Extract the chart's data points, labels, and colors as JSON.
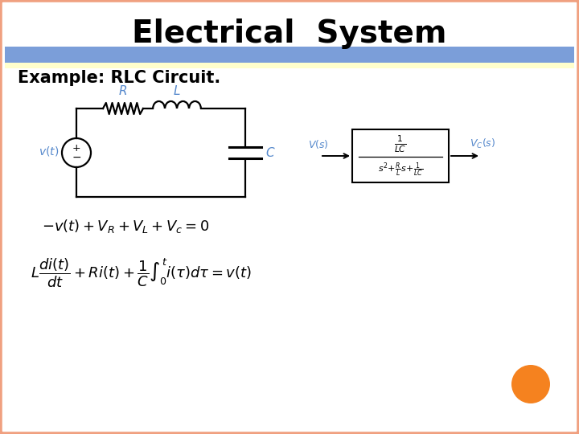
{
  "title": "Electrical  System",
  "title_fontsize": 28,
  "subtitle": "Example: RLC Circuit.",
  "subtitle_fontsize": 15,
  "bg_color": "#FFFFFF",
  "outer_border_color": "#F0A080",
  "header_bar_color": "#7B9ED9",
  "cream_bar_color": "#FFFFF0",
  "circuit_color": "#000000",
  "label_color": "#5588CC",
  "orange_dot_color": "#F5821F",
  "arrow_color": "#000000",
  "tf_box_color": "#000000"
}
